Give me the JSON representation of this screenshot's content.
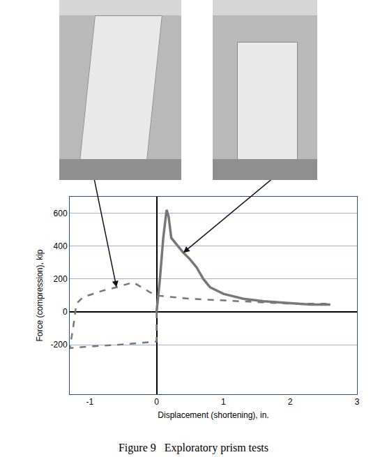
{
  "chart_data": {
    "type": "line",
    "title": "Figure 9   Exploratory prism tests",
    "x_label": "Displacement (shortening), in.",
    "y_label": "Force (compression), kip",
    "series": [
      {
        "color": "#777777",
        "line_style": "solid",
        "x": [
          0,
          0.05,
          0.1,
          0.15,
          0.18,
          0.22,
          0.3,
          0.4,
          0.5,
          0.6,
          0.7,
          0.8,
          1.0,
          1.3,
          1.6,
          2.0,
          2.3,
          2.6
        ],
        "values": [
          0,
          200,
          450,
          620,
          580,
          450,
          410,
          360,
          320,
          270,
          200,
          150,
          110,
          80,
          65,
          55,
          45,
          45
        ]
      },
      {
        "color": "#777777",
        "line_style": "dash",
        "x": [
          0,
          0,
          -0.3,
          -0.6,
          -1.0,
          -1.3,
          -1.25,
          -1.2,
          -1.1,
          -0.8,
          -0.6,
          -0.35,
          -0.1,
          0,
          0.5,
          1.0,
          1.5,
          2.0,
          2.6
        ],
        "values": [
          0,
          -180,
          -190,
          -200,
          -210,
          -220,
          -100,
          50,
          90,
          130,
          150,
          180,
          120,
          100,
          80,
          70,
          60,
          50,
          50
        ]
      }
    ],
    "xlim": [
      -1.3,
      3
    ],
    "xticks": [
      -1,
      0,
      1,
      2,
      3
    ],
    "ylim": [
      -500,
      700
    ],
    "yticks": [
      -200,
      0,
      200,
      400,
      600
    ],
    "grid": true
  }
}
